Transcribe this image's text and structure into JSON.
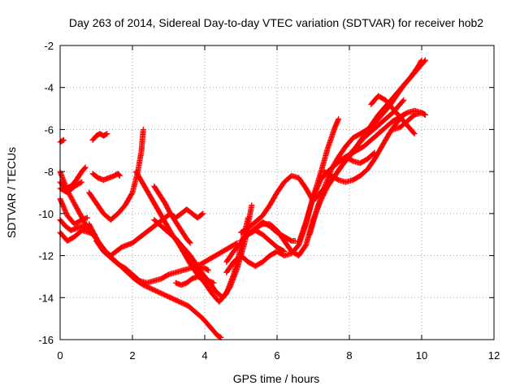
{
  "chart_data": {
    "type": "scatter",
    "title": "Day 263 of 2014, Sidereal Day-to-day VTEC variation (SDTVAR) for receiver hob2",
    "xlabel": "GPS time / hours",
    "ylabel": "SDTVAR / TECUs",
    "xlim": [
      0,
      12
    ],
    "ylim": [
      -16,
      -2
    ],
    "x_ticks": [
      "0",
      "2",
      "4",
      "6",
      "8",
      "10",
      "12"
    ],
    "y_ticks": [
      "-16",
      "-14",
      "-12",
      "-10",
      "-8",
      "-6",
      "-4",
      "-2"
    ],
    "x_tick_values": [
      0,
      2,
      4,
      6,
      8,
      10,
      12
    ],
    "y_tick_values": [
      -16,
      -14,
      -12,
      -10,
      -8,
      -6,
      -4,
      -2
    ],
    "grid": true,
    "marker": "plus",
    "color": "#ff0000",
    "series": [
      {
        "x": [
          0.0,
          0.1
        ],
        "y": [
          -6.6,
          -6.5
        ]
      },
      {
        "x": [
          0.0,
          0.2,
          0.45,
          0.7,
          1.0,
          1.3,
          1.55,
          1.8,
          2.05,
          2.3,
          2.55,
          2.8,
          3.05,
          3.3,
          3.55,
          3.75,
          3.95,
          4.1,
          4.25,
          4.35,
          4.45
        ],
        "y": [
          -8.0,
          -8.9,
          -9.7,
          -10.5,
          -11.2,
          -11.9,
          -12.3,
          -12.7,
          -13.1,
          -13.4,
          -13.6,
          -13.8,
          -14.0,
          -14.2,
          -14.4,
          -14.7,
          -15.0,
          -15.3,
          -15.6,
          -15.8,
          -15.9
        ]
      },
      {
        "x": [
          0.0,
          0.2,
          0.4,
          0.6,
          0.75
        ],
        "y": [
          -9.3,
          -10.1,
          -10.5,
          -10.3,
          -10.2
        ]
      },
      {
        "x": [
          0.0,
          0.15,
          0.3,
          0.45,
          0.6,
          0.7
        ],
        "y": [
          -10.3,
          -10.6,
          -10.8,
          -10.7,
          -10.6,
          -10.7
        ]
      },
      {
        "x": [
          0.0,
          0.2,
          0.4,
          0.6,
          0.8,
          0.95
        ],
        "y": [
          -10.9,
          -11.3,
          -11.1,
          -10.8,
          -10.9,
          -11.0
        ]
      },
      {
        "x": [
          0.0,
          0.15,
          0.3,
          0.45,
          0.6,
          0.7
        ],
        "y": [
          -8.5,
          -8.8,
          -8.7,
          -8.4,
          -8.0,
          -7.8
        ]
      },
      {
        "x": [
          0.0,
          0.2,
          0.4,
          0.6
        ],
        "y": [
          -8.8,
          -9.0,
          -8.7,
          -8.5
        ]
      },
      {
        "x": [
          0.9,
          1.0,
          1.1,
          1.2,
          1.3
        ],
        "y": [
          -6.5,
          -6.3,
          -6.2,
          -6.3,
          -6.2
        ]
      },
      {
        "x": [
          0.9,
          1.05,
          1.2,
          1.35,
          1.5,
          1.6,
          1.65
        ],
        "y": [
          -8.1,
          -8.3,
          -8.4,
          -8.3,
          -8.2,
          -8.1,
          -8.2
        ]
      },
      {
        "x": [
          0.8,
          1.0,
          1.2,
          1.4,
          1.6,
          1.8,
          2.0,
          2.15,
          2.25,
          2.3
        ],
        "y": [
          -9.0,
          -9.5,
          -10.0,
          -10.3,
          -10.0,
          -9.6,
          -9.0,
          -8.0,
          -7.0,
          -6.0
        ]
      },
      {
        "x": [
          0.8,
          0.95,
          1.1,
          1.25,
          1.4,
          1.55,
          1.7,
          1.85,
          2.0,
          2.15,
          2.3,
          2.45,
          2.6,
          2.75,
          2.9,
          3.05,
          3.2,
          3.35,
          3.5,
          3.65,
          3.8,
          3.95
        ],
        "y": [
          -10.5,
          -11.0,
          -11.5,
          -11.8,
          -12.0,
          -11.8,
          -11.6,
          -11.5,
          -11.4,
          -11.2,
          -11.0,
          -10.8,
          -10.6,
          -10.4,
          -10.2,
          -10.0,
          -10.2,
          -10.0,
          -9.8,
          -10.0,
          -10.2,
          -10.0
        ]
      },
      {
        "x": [
          1.0,
          1.2,
          1.4,
          1.6,
          1.8,
          2.0,
          2.2,
          2.4,
          2.6,
          2.8,
          3.0,
          3.2,
          3.4,
          3.6,
          3.8,
          4.0,
          4.1
        ],
        "y": [
          -11.3,
          -11.8,
          -12.1,
          -12.4,
          -12.6,
          -12.9,
          -13.2,
          -13.3,
          -13.2,
          -13.1,
          -12.9,
          -12.8,
          -12.7,
          -12.6,
          -12.5,
          -12.6,
          -12.7
        ]
      },
      {
        "x": [
          2.1,
          2.3,
          2.5,
          2.7,
          2.9,
          3.1,
          3.3,
          3.5,
          3.7,
          3.9,
          4.1,
          4.3,
          4.5,
          4.7,
          4.9,
          5.1,
          5.3
        ],
        "y": [
          -8.0,
          -8.6,
          -9.2,
          -9.8,
          -10.4,
          -11.0,
          -11.5,
          -12.0,
          -12.4,
          -12.8,
          -13.2,
          -13.7,
          -14.0,
          -13.5,
          -12.6,
          -11.4,
          -9.6
        ]
      },
      {
        "x": [
          2.6,
          2.8,
          3.0,
          3.2,
          3.4,
          3.6,
          3.8,
          3.95,
          4.05
        ],
        "y": [
          -10.3,
          -10.6,
          -10.9,
          -11.2,
          -11.6,
          -12.0,
          -12.5,
          -12.9,
          -13.2
        ]
      },
      {
        "x": [
          2.6,
          2.75,
          2.9,
          3.05,
          3.2,
          3.35,
          3.5,
          3.6
        ],
        "y": [
          -8.7,
          -9.1,
          -9.5,
          -10.0,
          -10.4,
          -10.8,
          -11.2,
          -11.4
        ]
      },
      {
        "x": [
          3.2,
          3.4,
          3.6,
          3.8,
          4.0,
          4.2,
          4.4,
          4.6,
          4.8,
          5.0,
          5.2
        ],
        "y": [
          -11.2,
          -11.8,
          -12.4,
          -12.9,
          -13.3,
          -13.8,
          -14.2,
          -13.8,
          -12.9,
          -11.6,
          -10.2
        ]
      },
      {
        "x": [
          3.2,
          3.35,
          3.5,
          3.65,
          3.8,
          3.95,
          4.1,
          4.25
        ],
        "y": [
          -13.3,
          -13.4,
          -13.3,
          -13.1,
          -13.0,
          -13.1,
          -13.2,
          -13.3
        ]
      },
      {
        "x": [
          3.7,
          3.9,
          4.1,
          4.3,
          4.5,
          4.7,
          4.9
        ],
        "y": [
          -12.5,
          -12.4,
          -12.2,
          -12.0,
          -11.8,
          -11.6,
          -11.4
        ]
      },
      {
        "x": [
          4.6,
          4.8,
          5.0,
          5.2,
          5.4,
          5.6,
          5.8,
          6.0,
          6.2,
          6.4,
          6.6,
          6.8,
          7.0,
          7.2,
          7.4,
          7.6,
          7.8,
          8.0,
          8.2,
          8.4,
          8.6,
          8.8,
          9.0,
          9.2,
          9.4,
          9.6,
          9.8,
          10.0,
          10.1
        ],
        "y": [
          -12.8,
          -12.3,
          -12.0,
          -12.3,
          -12.5,
          -12.3,
          -12.0,
          -11.8,
          -12.0,
          -11.9,
          -11.5,
          -10.5,
          -9.2,
          -8.4,
          -8.0,
          -7.7,
          -7.4,
          -7.2,
          -7.0,
          -6.8,
          -6.5,
          -6.2,
          -5.9,
          -5.6,
          -5.4,
          -5.2,
          -5.1,
          -5.2,
          -5.3
        ]
      },
      {
        "x": [
          4.6,
          4.8,
          5.0,
          5.2,
          5.4,
          5.6,
          5.8,
          6.0,
          6.2,
          6.4,
          6.6,
          6.8,
          7.0,
          7.2,
          7.4,
          7.6,
          7.8,
          8.0,
          8.2,
          8.4,
          8.6,
          8.8,
          9.0,
          9.2,
          9.4,
          9.6,
          9.8,
          10.0,
          10.1
        ],
        "y": [
          -12.3,
          -11.8,
          -11.4,
          -11.0,
          -10.7,
          -10.5,
          -10.5,
          -10.8,
          -11.3,
          -11.8,
          -12.0,
          -11.5,
          -10.3,
          -9.4,
          -8.7,
          -8.2,
          -7.7,
          -7.2,
          -6.8,
          -6.3,
          -5.8,
          -5.3,
          -4.9,
          -4.5,
          -4.1,
          -3.7,
          -3.3,
          -2.9,
          -2.7
        ]
      },
      {
        "x": [
          5.2,
          5.4,
          5.6,
          5.8,
          6.0,
          6.2,
          6.4,
          6.5
        ],
        "y": [
          -11.0,
          -10.7,
          -10.4,
          -10.6,
          -10.9,
          -11.1,
          -11.3,
          -11.3
        ]
      },
      {
        "x": [
          5.0,
          5.2,
          5.4,
          5.6,
          5.8,
          6.0,
          6.2
        ],
        "y": [
          -11.3,
          -11.0,
          -10.8,
          -11.0,
          -11.3,
          -11.6,
          -11.8
        ]
      },
      {
        "x": [
          5.0,
          5.2,
          5.4,
          5.6,
          5.8,
          6.0,
          6.2,
          6.4,
          6.6,
          6.8,
          7.0,
          7.2,
          7.4,
          7.6,
          7.8,
          8.0,
          8.2,
          8.4,
          8.6,
          8.8,
          9.0,
          9.2,
          9.4,
          9.5
        ],
        "y": [
          -10.9,
          -10.7,
          -10.4,
          -10.1,
          -9.6,
          -9.0,
          -8.5,
          -8.2,
          -8.3,
          -8.8,
          -9.4,
          -9.0,
          -8.6,
          -8.2,
          -7.7,
          -7.3,
          -6.8,
          -6.4,
          -6.1,
          -5.8,
          -5.5,
          -5.2,
          -4.8,
          -4.6
        ]
      },
      {
        "x": [
          6.6,
          6.8,
          7.0,
          7.2,
          7.4,
          7.6,
          7.7
        ],
        "y": [
          -11.4,
          -10.4,
          -9.2,
          -8.1,
          -6.9,
          -5.9,
          -5.5
        ]
      },
      {
        "x": [
          6.9,
          7.1,
          7.3,
          7.5,
          7.7,
          7.9,
          8.1,
          8.3,
          8.5,
          8.7,
          8.9,
          9.1,
          9.3,
          9.5,
          9.7,
          9.9,
          10.0
        ],
        "y": [
          -11.0,
          -9.8,
          -8.8,
          -7.9,
          -7.3,
          -6.8,
          -6.4,
          -6.2,
          -6.0,
          -5.7,
          -5.3,
          -4.9,
          -4.4,
          -3.9,
          -3.5,
          -3.0,
          -2.7
        ]
      },
      {
        "x": [
          7.3,
          7.5,
          7.7,
          7.9,
          8.1,
          8.3,
          8.5,
          8.7,
          8.9,
          9.1,
          9.3,
          9.5
        ],
        "y": [
          -8.0,
          -8.2,
          -8.4,
          -8.5,
          -8.4,
          -8.2,
          -7.9,
          -7.4,
          -6.8,
          -6.2,
          -5.7,
          -5.3
        ]
      },
      {
        "x": [
          7.9,
          8.1,
          8.3,
          8.5,
          8.7
        ],
        "y": [
          -7.3,
          -7.5,
          -7.6,
          -7.4,
          -7.1
        ]
      },
      {
        "x": [
          8.6,
          8.8,
          9.0,
          9.2,
          9.4,
          9.6,
          9.8
        ],
        "y": [
          -4.8,
          -4.4,
          -4.6,
          -5.0,
          -5.4,
          -5.8,
          -6.2
        ]
      },
      {
        "x": [
          9.2,
          9.4,
          9.6,
          9.8,
          10.0,
          10.1
        ],
        "y": [
          -6.0,
          -5.9,
          -5.6,
          -5.3,
          -5.2,
          -5.3
        ]
      }
    ]
  }
}
